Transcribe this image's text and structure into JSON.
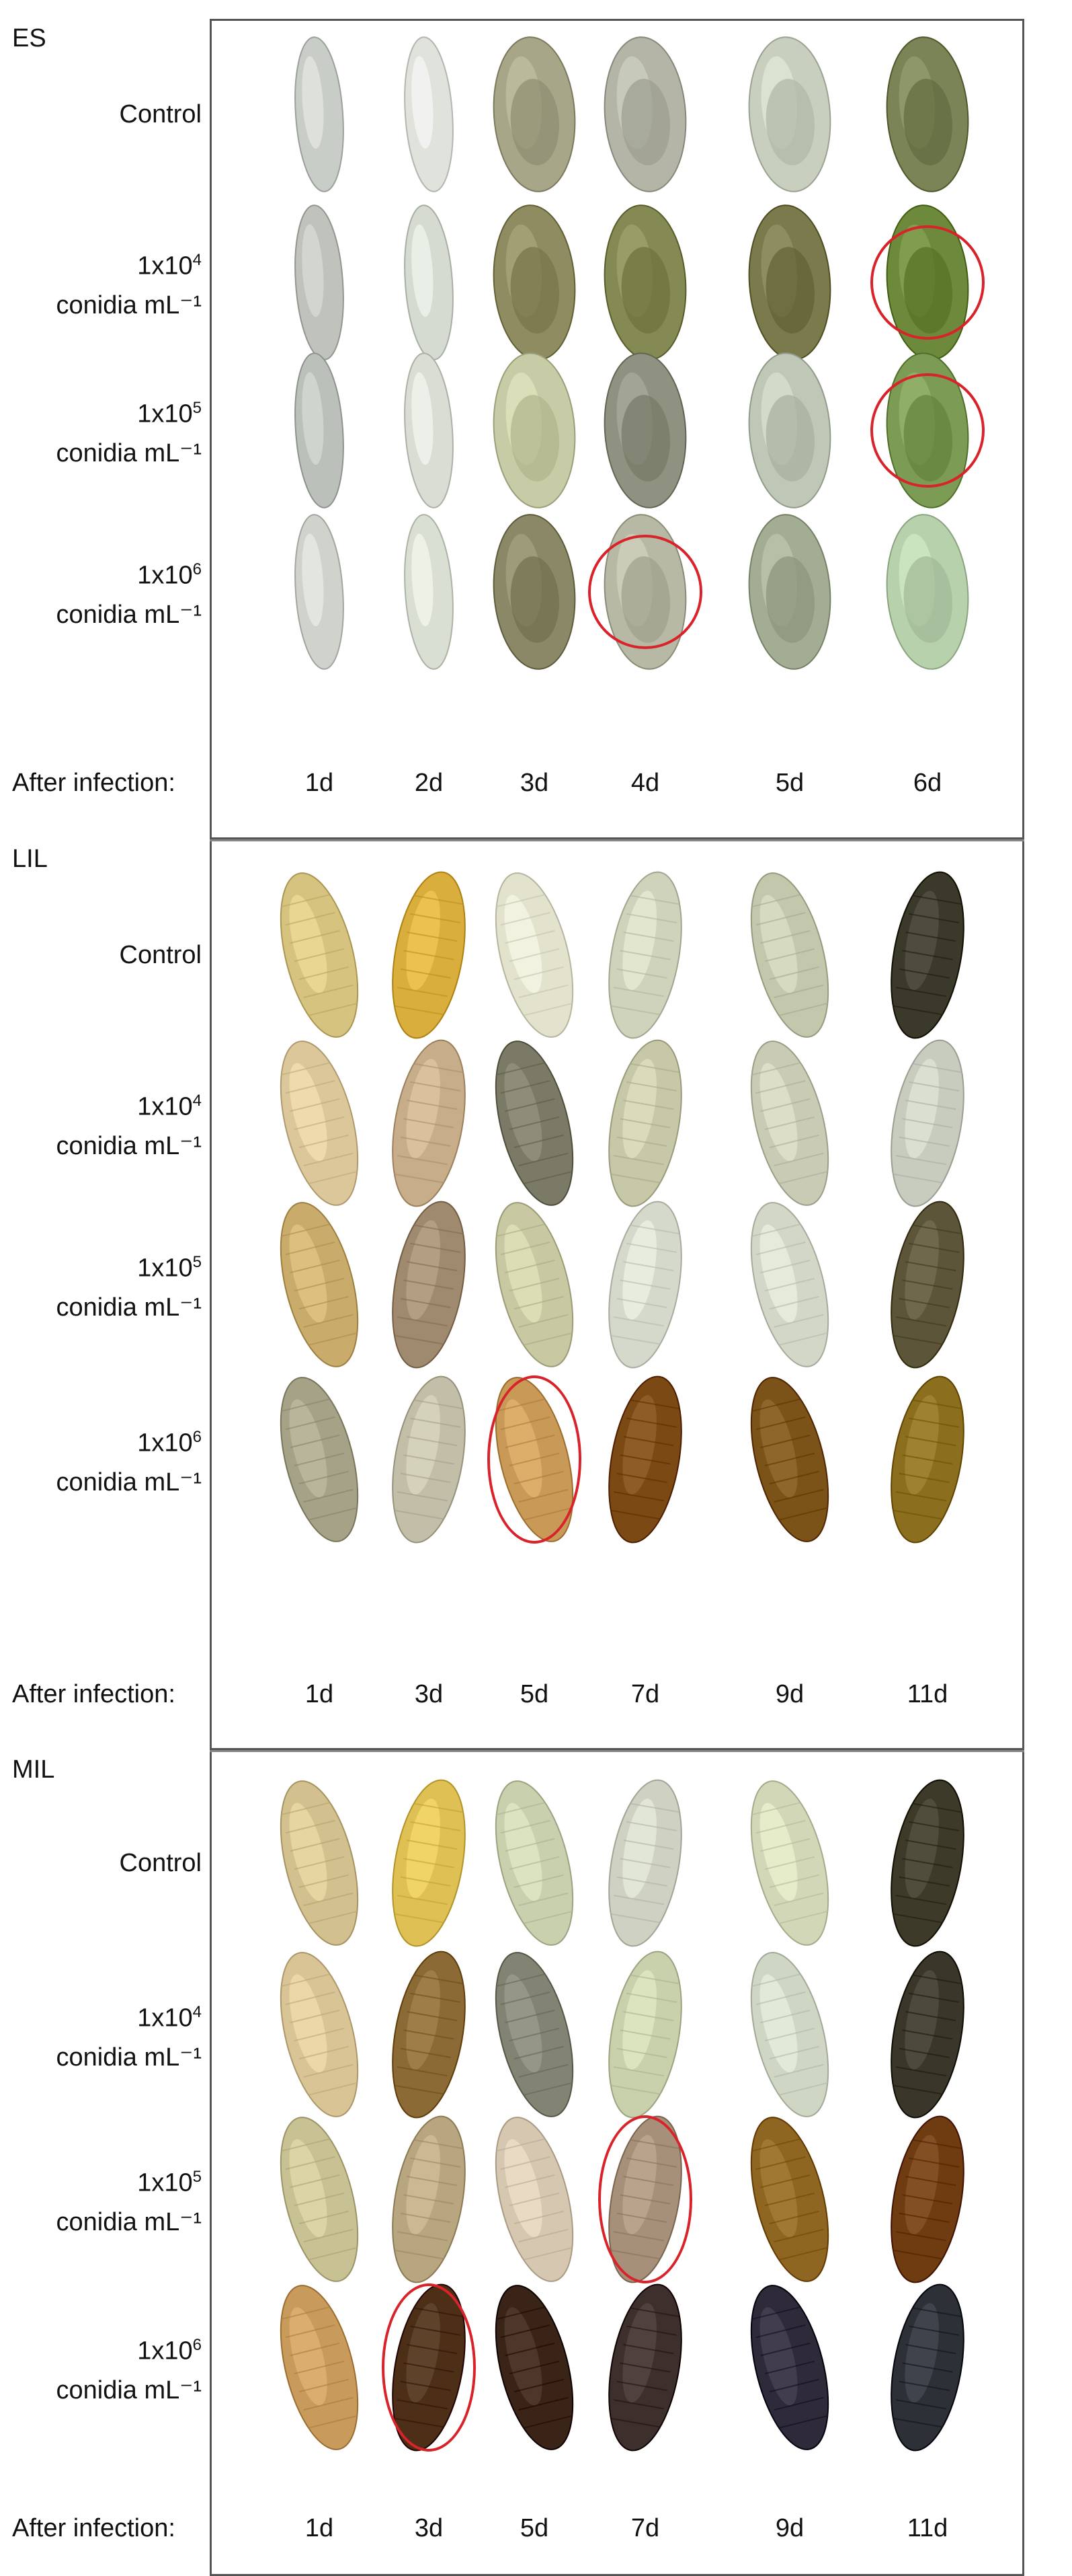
{
  "panels": [
    {
      "title": "ES",
      "stage": "egg",
      "rows": [
        {
          "line1": "Control",
          "line2": ""
        },
        {
          "line1": "1x10",
          "exp": "4",
          "line2": "conidia mL⁻¹"
        },
        {
          "line1": "1x10",
          "exp": "5",
          "line2": "conidia mL⁻¹"
        },
        {
          "line1": "1x10",
          "exp": "6",
          "line2": "conidia mL⁻¹"
        }
      ],
      "axis_title": "After infection:",
      "days": [
        "1d",
        "2d",
        "3d",
        "4d",
        "5d",
        "6d"
      ],
      "circled": [
        [
          1,
          5
        ],
        [
          2,
          5
        ],
        [
          3,
          3
        ]
      ],
      "colors": [
        [
          "#c9cdc8",
          "#dfe3dc",
          "#a7a689",
          "#b4b5a6",
          "#c8cfbe",
          "#7b8457"
        ],
        [
          "#bfc3bc",
          "#d6dbd2",
          "#8f8c62",
          "#858a55",
          "#7b7a4d",
          "#6d8a3c"
        ],
        [
          "#bcc0ba",
          "#d9ddd4",
          "#c8cca6",
          "#8f9280",
          "#bfc8b6",
          "#7c9c56"
        ],
        [
          "#cfd3cb",
          "#dadfd3",
          "#8a8867",
          "#b7b9a4",
          "#a3ad93",
          "#b8d1ad"
        ]
      ]
    },
    {
      "title": "LIL",
      "stage": "larva",
      "rows": [
        {
          "line1": "Control",
          "line2": ""
        },
        {
          "line1": "1x10",
          "exp": "4",
          "line2": "conidia mL⁻¹"
        },
        {
          "line1": "1x10",
          "exp": "5",
          "line2": "conidia mL⁻¹"
        },
        {
          "line1": "1x10",
          "exp": "6",
          "line2": "conidia mL⁻¹"
        }
      ],
      "axis_title": "After infection:",
      "days": [
        "1d",
        "3d",
        "5d",
        "7d",
        "9d",
        "11d"
      ],
      "circled": [
        [
          3,
          2
        ]
      ],
      "colors": [
        [
          "#d7c380",
          "#d9ae3d",
          "#e2e2cd",
          "#cfd3bb",
          "#c3c8ad",
          "#3b3a2a"
        ],
        [
          "#dcc79a",
          "#c8ad8a",
          "#7b7a66",
          "#c7c8a8",
          "#c9cbb4",
          "#c8ccbf"
        ],
        [
          "#c9ac6c",
          "#9f8a70",
          "#c8c9a2",
          "#d5d9cc",
          "#d3d7c7",
          "#5d553a"
        ],
        [
          "#a6a287",
          "#c2bea7",
          "#c99a57",
          "#7b4a14",
          "#7b5217",
          "#8c6f1e"
        ]
      ]
    },
    {
      "title": "MIL",
      "stage": "larva",
      "rows": [
        {
          "line1": "Control",
          "line2": ""
        },
        {
          "line1": "1x10",
          "exp": "4",
          "line2": "conidia mL⁻¹"
        },
        {
          "line1": "1x10",
          "exp": "5",
          "line2": "conidia mL⁻¹"
        },
        {
          "line1": "1x10",
          "exp": "6",
          "line2": "conidia mL⁻¹"
        }
      ],
      "axis_title": "After infection:",
      "days": [
        "1d",
        "3d",
        "5d",
        "7d",
        "9d",
        "11d"
      ],
      "circled": [
        [
          2,
          3
        ],
        [
          3,
          1
        ]
      ],
      "colors": [
        [
          "#d2c08e",
          "#dec054",
          "#c8d0ae",
          "#cfd2c2",
          "#d2d8b7",
          "#3d3a2a"
        ],
        [
          "#d8c495",
          "#8c6a36",
          "#838373",
          "#c8d1ac",
          "#cfd6c3",
          "#3a372a"
        ],
        [
          "#c7c194",
          "#b8a680",
          "#d6c8b0",
          "#a7907a",
          "#8e6521",
          "#6e3c10"
        ],
        [
          "#c89a5c",
          "#4d2f18",
          "#3a2417",
          "#3c2f2c",
          "#2f2a3a",
          "#2e3038"
        ]
      ]
    }
  ]
}
